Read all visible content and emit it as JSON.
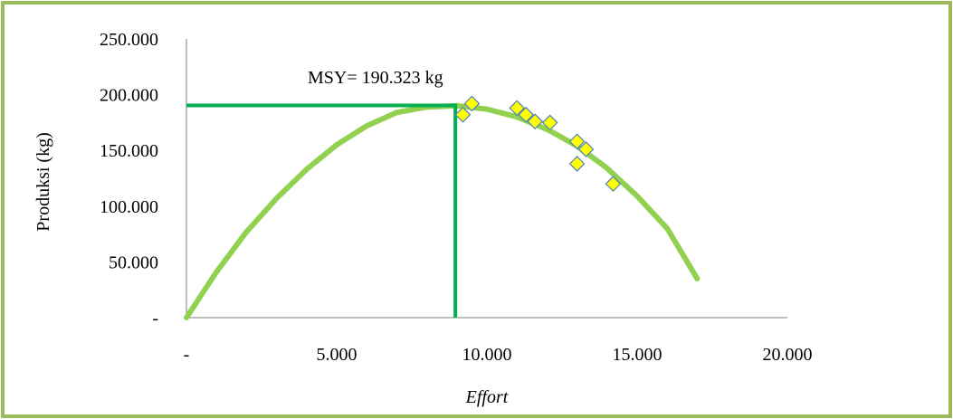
{
  "chart_data": {
    "type": "scatter",
    "xlabel": "Effort",
    "ylabel": "Produksi (kg)",
    "annotation": "MSY= 190.323 kg",
    "msy": {
      "effort": 8950,
      "production": 190323
    },
    "xlim": [
      0,
      20000
    ],
    "ylim": [
      0,
      250000
    ],
    "x_ticks": [
      "-",
      "5.000",
      "10.000",
      "15.000",
      "20.000"
    ],
    "y_ticks": [
      "-",
      "50.000",
      "100.000",
      "150.000",
      "200.000",
      "250.000"
    ],
    "x_tick_values": [
      0,
      5000,
      10000,
      15000,
      20000
    ],
    "y_tick_values": [
      0,
      50000,
      100000,
      150000,
      200000,
      250000
    ],
    "grid": false,
    "series": [
      {
        "kind": "curve",
        "x": [
          0,
          1000,
          2000,
          3000,
          4000,
          5000,
          6000,
          7000,
          8000,
          9000,
          10000,
          11000,
          12000,
          13000,
          14000,
          15000,
          16000,
          17000
        ],
        "y": [
          0,
          41000,
          77000,
          107000,
          133000,
          155000,
          172000,
          184000,
          189000,
          190000,
          187000,
          180000,
          169000,
          154000,
          134000,
          109000,
          80000,
          35000
        ]
      },
      {
        "kind": "points",
        "x": [
          9200,
          9500,
          11000,
          11300,
          11600,
          12100,
          13000,
          13300,
          13000,
          14200
        ],
        "y": [
          182000,
          192000,
          188000,
          182000,
          176000,
          175000,
          158000,
          151000,
          138000,
          120000
        ]
      }
    ],
    "colors": {
      "frame": "#9bbb59",
      "curve": "#92d050",
      "msy_lines": "#00b050",
      "point_fill": "#ffff00",
      "point_stroke": "#4f81bd",
      "axis": "#7f7f7f"
    }
  }
}
